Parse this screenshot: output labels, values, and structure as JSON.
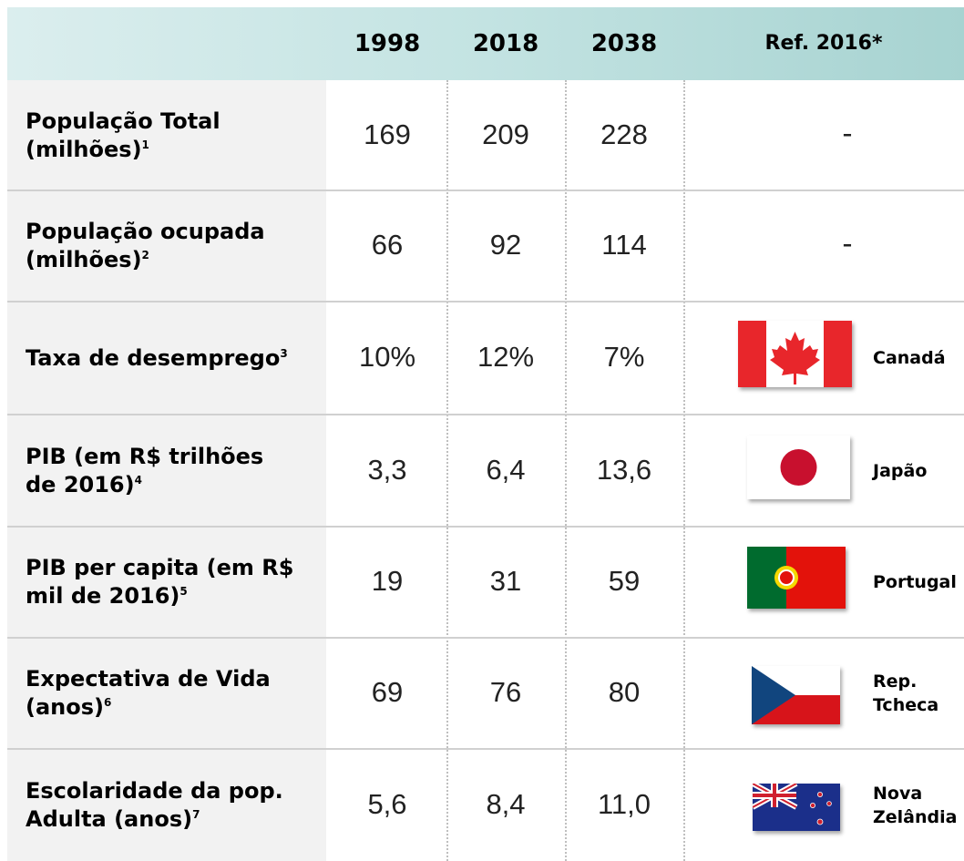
{
  "table": {
    "columns": [
      "1998",
      "2018",
      "2038",
      "Ref. 2016*"
    ],
    "rows": [
      {
        "label": "População Total (milhões)",
        "note": "1",
        "values": [
          "169",
          "209",
          "228"
        ],
        "ref": "-"
      },
      {
        "label": "População ocupada (milhões)",
        "note": "2",
        "values": [
          "66",
          "92",
          "114"
        ],
        "ref": "-"
      },
      {
        "label": "Taxa de desemprego",
        "note": "3",
        "values": [
          "10%",
          "12%",
          "7%"
        ],
        "ref": "Canadá"
      },
      {
        "label": "PIB (em R$ trilhões de 2016)",
        "note": "4",
        "values": [
          "3,3",
          "6,4",
          "13,6"
        ],
        "ref": "Japão"
      },
      {
        "label": "PIB per capita (em R$ mil de 2016)",
        "note": "5",
        "values": [
          "19",
          "31",
          "59"
        ],
        "ref": "Portugal"
      },
      {
        "label": "Expectativa de Vida (anos)",
        "note": "6",
        "values": [
          "69",
          "76",
          "80"
        ],
        "ref": "Rep. Tcheca"
      },
      {
        "label": "Escolaridade da pop. Adulta (anos)",
        "note": "7",
        "values": [
          "5,6",
          "8,4",
          "11,0"
        ],
        "ref": "Nova Zelândia"
      }
    ]
  }
}
